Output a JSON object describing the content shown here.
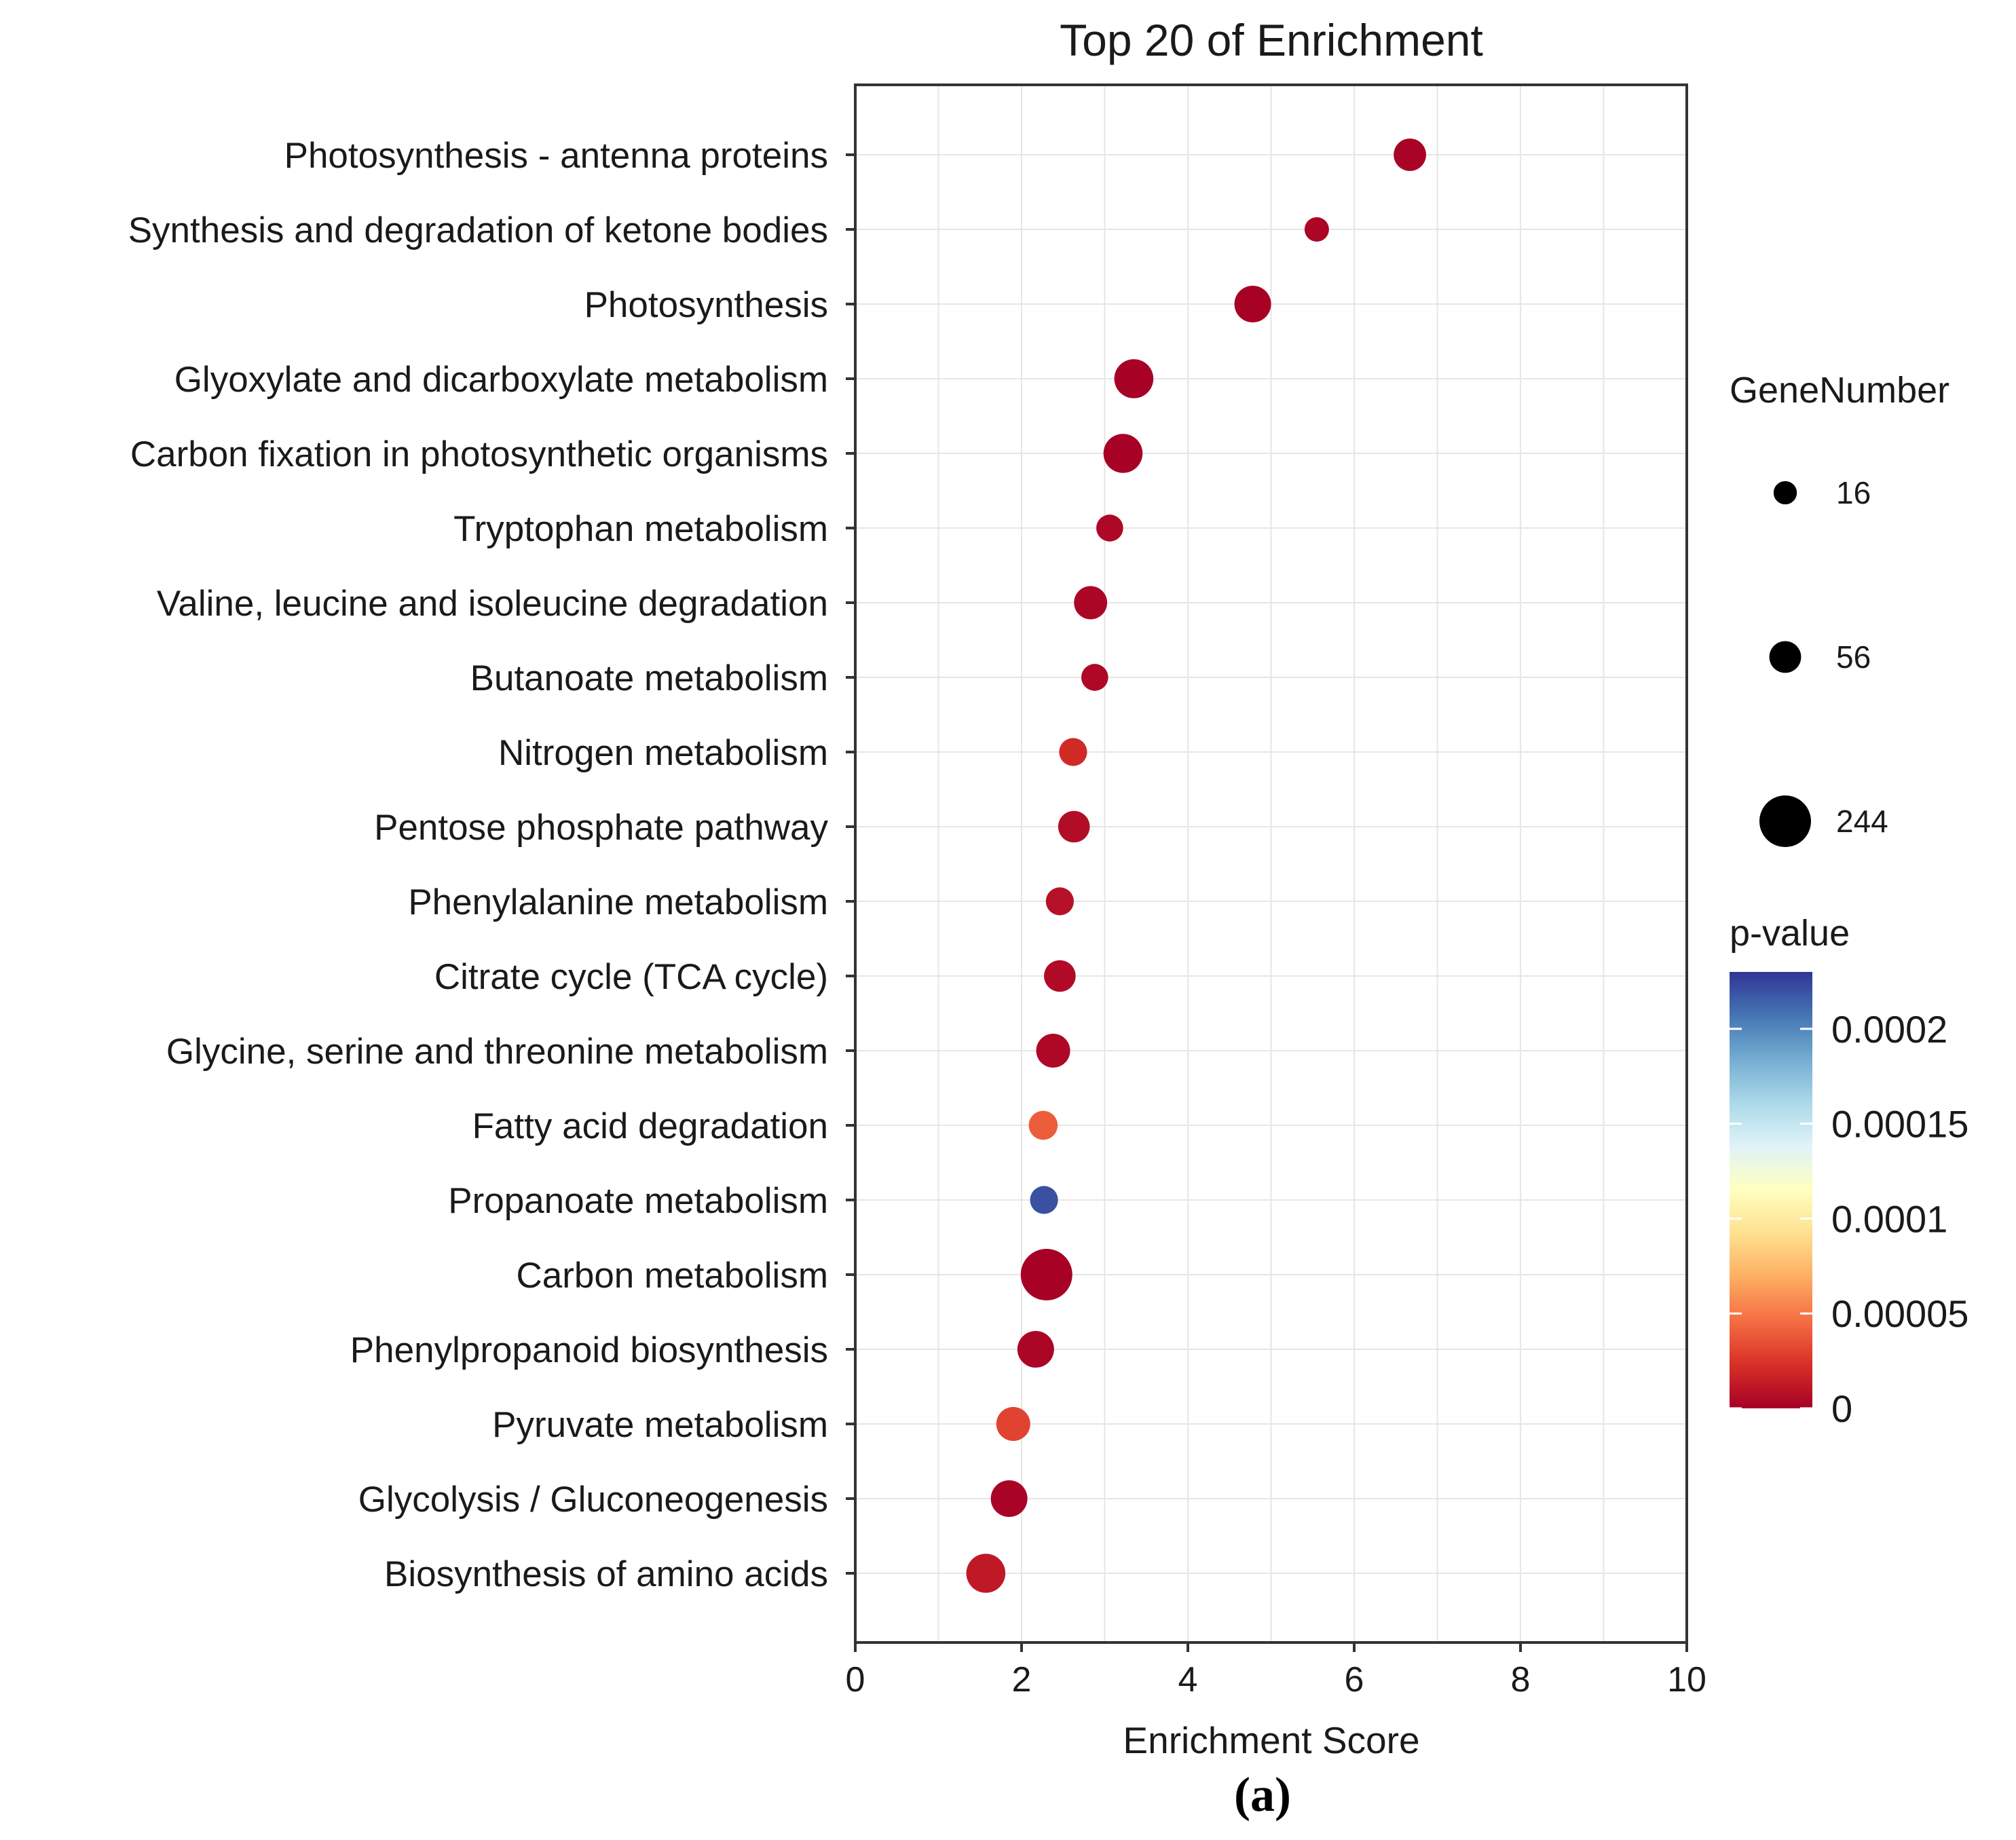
{
  "chart_data": {
    "type": "scatter",
    "title": "Top 20 of  Enrichment",
    "xlabel": "Enrichment Score",
    "ylabel": "",
    "xlim": [
      0,
      10
    ],
    "xticks": [
      "0",
      "2",
      "4",
      "6",
      "8",
      "10"
    ],
    "grid": true,
    "legend_position": "right",
    "panel_label": "(a)",
    "categories": [
      "Photosynthesis - antenna proteins",
      "Synthesis and degradation of ketone bodies",
      "Photosynthesis",
      "Glyoxylate and dicarboxylate metabolism",
      "Carbon fixation in photosynthetic organisms",
      "Tryptophan metabolism",
      "Valine, leucine and isoleucine degradation",
      "Butanoate metabolism",
      "Nitrogen metabolism",
      "Pentose phosphate pathway",
      "Phenylalanine metabolism",
      "Citrate cycle (TCA cycle)",
      "Glycine, serine and threonine metabolism",
      "Fatty acid degradation",
      "Propanoate metabolism",
      "Carbon metabolism",
      "Phenylpropanoid biosynthesis",
      "Pyruvate metabolism",
      "Glycolysis / Gluconeogenesis",
      "Biosynthesis of amino acids"
    ],
    "enrichment_score": [
      6.67,
      5.55,
      4.78,
      3.35,
      3.22,
      3.06,
      2.83,
      2.88,
      2.62,
      2.63,
      2.46,
      2.46,
      2.38,
      2.26,
      2.27,
      2.3,
      2.17,
      1.9,
      1.85,
      1.57
    ],
    "gene_number": [
      60,
      20,
      90,
      110,
      110,
      30,
      65,
      30,
      35,
      55,
      35,
      55,
      70,
      40,
      35,
      244,
      90,
      70,
      90,
      110
    ],
    "p_value": [
      2e-06,
      3e-06,
      1e-06,
      1e-06,
      1e-06,
      4e-06,
      3e-06,
      4e-06,
      2e-05,
      6e-06,
      8e-06,
      5e-06,
      4e-06,
      4e-05,
      0.00022,
      1e-06,
      3e-06,
      3e-05,
      2e-06,
      1.2e-05
    ],
    "size_legend": {
      "title": "GeneNumber",
      "values": [
        16,
        56,
        244
      ],
      "labels": [
        "16",
        "56",
        "244"
      ]
    },
    "color_legend": {
      "title": "p-value",
      "range": [
        0,
        0.00023
      ],
      "ticks": [
        0.0002,
        0.00015,
        0.0001,
        5e-05,
        0
      ],
      "tick_labels": [
        "0.0002",
        "0.00015",
        "0.0001",
        "0.00005",
        "0"
      ],
      "colors": [
        "#a50026",
        "#d73027",
        "#f46d43",
        "#fdae61",
        "#fee090",
        "#ffffbf",
        "#e0f3f8",
        "#abd9e9",
        "#74add1",
        "#4575b4",
        "#313695"
      ]
    }
  }
}
